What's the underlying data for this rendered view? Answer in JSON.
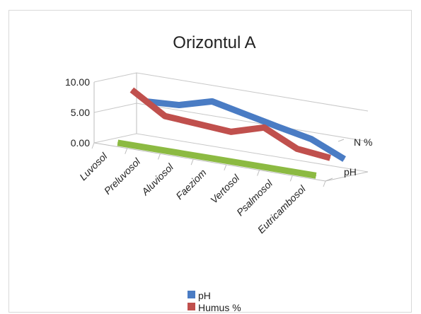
{
  "chart_data": {
    "type": "line",
    "subtype": "3d-line",
    "title": "Orizontul A",
    "categories": [
      "Luvosol",
      "Preluvosol",
      "Aluviosol",
      "Faeziom",
      "Vertosol",
      "Psalmosol",
      "Eutricambosol"
    ],
    "series": [
      {
        "name": "pH",
        "color": "#4a7cc4",
        "values": [
          6.0,
          6.3,
          7.8,
          6.6,
          5.4,
          4.3,
          1.9
        ]
      },
      {
        "name": "Humus %",
        "color": "#c0504d",
        "values": [
          8.4,
          5.0,
          4.6,
          4.2,
          5.8,
          3.2,
          2.6
        ]
      },
      {
        "name": "N %",
        "color": "#8cba42",
        "values": [
          0.2,
          0.2,
          0.2,
          0.2,
          0.2,
          0.2,
          0.2
        ]
      }
    ],
    "depth_axis_labels": [
      "N %",
      "pH"
    ],
    "y_ticks": [
      "0.00",
      "5.00",
      "10.00"
    ],
    "ylim": [
      0,
      10
    ],
    "gridlines": true,
    "legend": "bottom"
  }
}
